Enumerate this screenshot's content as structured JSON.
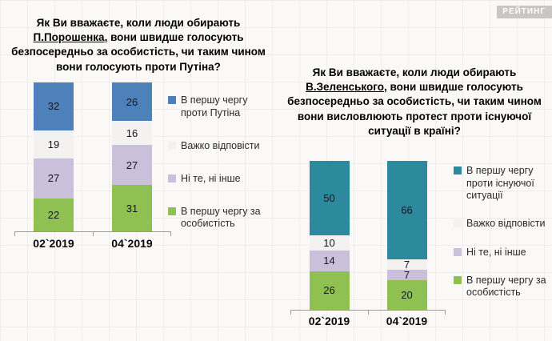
{
  "logo": {
    "text": "РЕЙТИНГ"
  },
  "chart_data": [
    {
      "type": "bar",
      "stacked": true,
      "title": "Як Ви вважаєте, коли люди обирають П.Порошенка, вони швидше голосують безпосередньо за особистість, чи таким чином вони голосують проти Путіна?",
      "title_parts": {
        "prefix": "Як Ви вважаєте, коли люди обирають ",
        "underlined": "П.Порошенка",
        "suffix": ", вони швидше голосують безпосередньо за особистість, чи таким чином вони голосують проти Путіна?"
      },
      "categories": [
        "02`2019",
        "04`2019"
      ],
      "series": [
        {
          "name": "В першу чергу за особистість",
          "color": "#8ec152",
          "values": [
            22,
            31
          ]
        },
        {
          "name": "Ні те, ні інше",
          "color": "#cbc0dc",
          "values": [
            27,
            27
          ]
        },
        {
          "name": "Важко відповісти",
          "color": "#f3f2f0",
          "values": [
            19,
            16
          ]
        },
        {
          "name": "В першу чергу проти Путіна",
          "color": "#4e80b9",
          "values": [
            32,
            26
          ]
        }
      ],
      "series_order": "bottom-to-top",
      "ylim": [
        0,
        100
      ],
      "legend_position": "right",
      "grid": false
    },
    {
      "type": "bar",
      "stacked": true,
      "title": "Як Ви вважаєте, коли люди обирають В.Зеленського, вони швидше голосують безпосередньо за особистість, чи таким чином вони висловлюють протест проти існуючої ситуації в країні?",
      "title_parts": {
        "prefix": "Як Ви вважаєте, коли люди обирають ",
        "underlined": "В.Зеленського",
        "suffix": ", вони швидше голосують безпосередньо за особистість, чи таким чином вони висловлюють протест проти існуючої ситуації в країні?"
      },
      "categories": [
        "02`2019",
        "04`2019"
      ],
      "series": [
        {
          "name": "В першу чергу за особистість",
          "color": "#8ec152",
          "values": [
            26,
            20
          ]
        },
        {
          "name": "Ні те, ні інше",
          "color": "#cbc0dc",
          "values": [
            14,
            7
          ]
        },
        {
          "name": "Важко відповісти",
          "color": "#f3f2f0",
          "values": [
            10,
            7
          ]
        },
        {
          "name": "В першу чергу проти існуючої ситуації",
          "color": "#2c8a9c",
          "values": [
            50,
            66
          ]
        }
      ],
      "series_order": "bottom-to-top",
      "ylim": [
        0,
        100
      ],
      "legend_position": "right",
      "grid": false
    }
  ]
}
